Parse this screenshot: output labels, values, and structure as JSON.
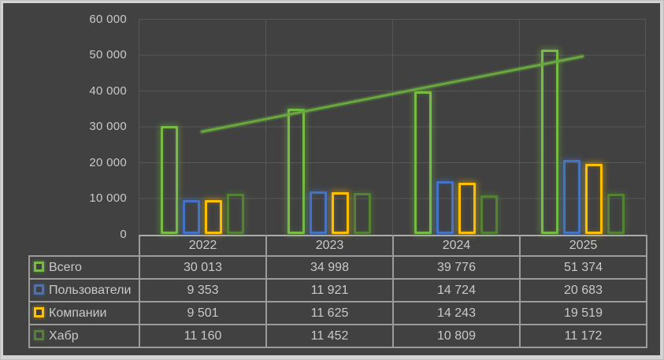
{
  "colors": {
    "background": "#414141",
    "frame": "#D3D3D3",
    "gridline": "#575757",
    "axis_line": "#ACACAC",
    "table_border": "#9B9B9B",
    "text": "#C9C9C9"
  },
  "chart_data": {
    "type": "bar",
    "title": "",
    "xlabel": "",
    "ylabel": "",
    "categories": [
      "2022",
      "2023",
      "2024",
      "2025"
    ],
    "series": [
      {
        "name": "Всего",
        "color": "#76BB44",
        "values": [
          30013,
          34998,
          39776,
          51374
        ],
        "values_formatted": [
          "30 013",
          "34 998",
          "39 776",
          "51 374"
        ]
      },
      {
        "name": "Пользователи",
        "color": "#4472C4",
        "values": [
          9353,
          11921,
          14724,
          20683
        ],
        "values_formatted": [
          "9 353",
          "11 921",
          "14 724",
          "20 683"
        ]
      },
      {
        "name": "Компании",
        "color": "#FFC000",
        "values": [
          9501,
          11625,
          14243,
          19519
        ],
        "values_formatted": [
          "9 501",
          "11 625",
          "14 243",
          "19 519"
        ]
      },
      {
        "name": "Хабр",
        "color": "#548235",
        "values": [
          11160,
          11452,
          10809,
          11172
        ],
        "values_formatted": [
          "11 160",
          "11 452",
          "10 809",
          "11 172"
        ]
      }
    ],
    "trendline": {
      "for_series": "Всего",
      "color": "#69A83E",
      "start_value": 28550,
      "end_value": 49530
    },
    "ylim": [
      0,
      60000
    ],
    "ytick_step": 10000,
    "ytick_labels": [
      "60 000",
      "50 000",
      "40 000",
      "30 000",
      "20 000",
      "10 000",
      "0"
    ],
    "grid": true,
    "bar_style": "hollow-outline-glow",
    "legend_position": "data-table-left",
    "data_table_shown": true
  }
}
